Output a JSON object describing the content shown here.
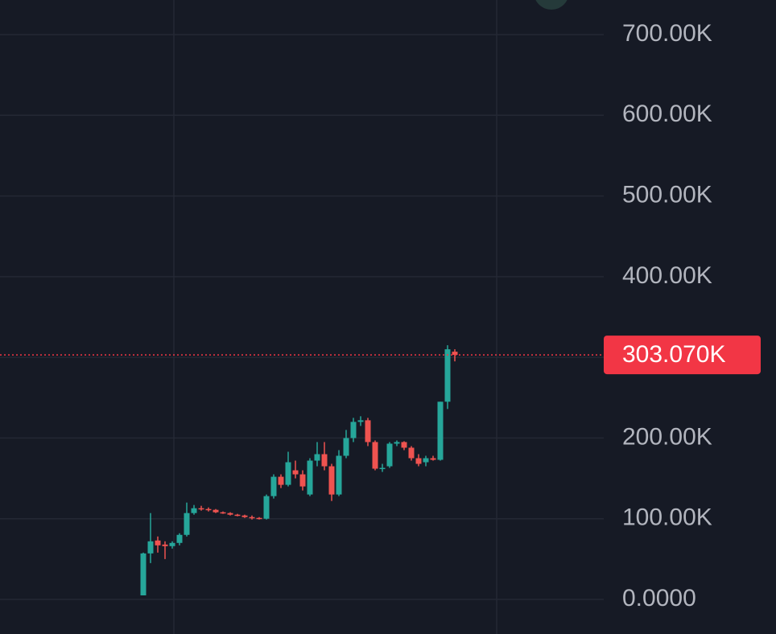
{
  "chart_data": {
    "type": "candlestick",
    "ylim": [
      0,
      700000
    ],
    "yticks": [
      {
        "value": 0,
        "label": "0.0000"
      },
      {
        "value": 100000,
        "label": "100.00K"
      },
      {
        "value": 200000,
        "label": "200.00K"
      },
      {
        "value": 300000,
        "label": "300.00K"
      },
      {
        "value": 400000,
        "label": "400.00K"
      },
      {
        "value": 500000,
        "label": "500.00K"
      },
      {
        "value": 600000,
        "label": "600.00K"
      },
      {
        "value": 700000,
        "label": "700.00K"
      }
    ],
    "grid": true,
    "up_color": "#26a69a",
    "down_color": "#ef5350",
    "last_price": {
      "value": 303070,
      "label": "303.070K",
      "color": "#f23645"
    },
    "open": [
      5000,
      57000,
      73000,
      68000,
      66000,
      70000,
      80000,
      107000,
      113000,
      112000,
      111000,
      108000,
      107000,
      105000,
      104000,
      102000,
      101000,
      100000,
      128000,
      152000,
      142000,
      160000,
      155000,
      130000,
      172000,
      180000,
      165000,
      130000,
      178000,
      200000,
      220000,
      222000,
      195000,
      162000,
      165000,
      193000,
      195000,
      188000,
      175000,
      170000,
      175000,
      173000,
      245000,
      307000
    ],
    "high": [
      58000,
      107000,
      78000,
      72000,
      72000,
      82000,
      120000,
      117000,
      116000,
      114000,
      112000,
      109000,
      108000,
      106000,
      105000,
      104000,
      102000,
      130000,
      155000,
      155000,
      183000,
      172000,
      160000,
      175000,
      195000,
      195000,
      168000,
      185000,
      210000,
      225000,
      227000,
      225000,
      197000,
      168000,
      195000,
      197000,
      196000,
      190000,
      180000,
      178000,
      178000,
      245000,
      315000,
      310000
    ],
    "low": [
      5000,
      45000,
      58000,
      50000,
      63000,
      67000,
      78000,
      105000,
      110000,
      109000,
      107000,
      106000,
      104000,
      103000,
      101000,
      99000,
      99000,
      99000,
      125000,
      138000,
      140000,
      150000,
      135000,
      128000,
      165000,
      160000,
      122000,
      128000,
      175000,
      195000,
      215000,
      190000,
      160000,
      158000,
      163000,
      190000,
      185000,
      172000,
      165000,
      165000,
      172000,
      172000,
      236000,
      295000
    ],
    "close": [
      57000,
      72000,
      67000,
      66000,
      70000,
      80000,
      107000,
      113000,
      112000,
      111000,
      108000,
      107000,
      105000,
      104000,
      102000,
      101000,
      100000,
      128000,
      152000,
      142000,
      170000,
      155000,
      140000,
      172000,
      180000,
      165000,
      130000,
      178000,
      200000,
      220000,
      222000,
      195000,
      162000,
      163000,
      193000,
      195000,
      188000,
      175000,
      168000,
      175000,
      173000,
      245000,
      310000,
      303070
    ]
  }
}
